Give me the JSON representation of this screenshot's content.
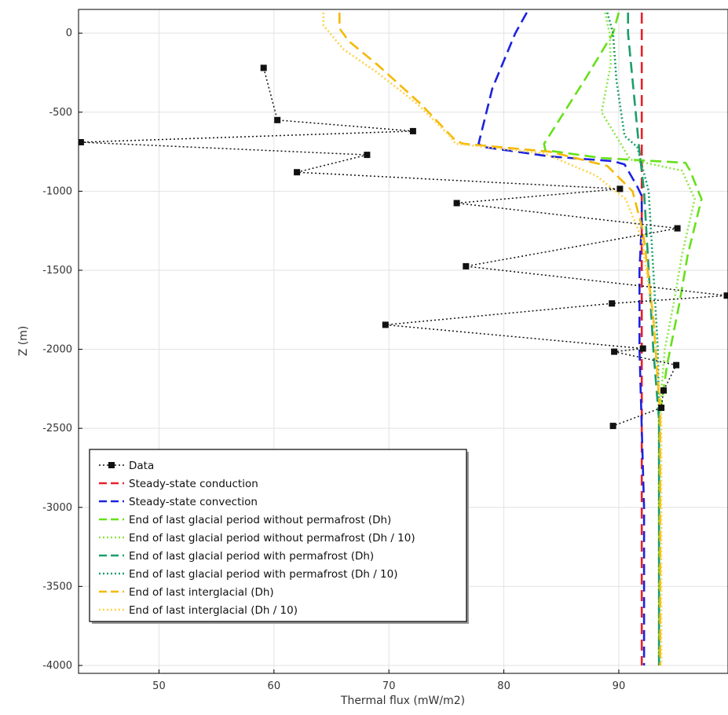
{
  "chart_data": {
    "type": "line",
    "title": "",
    "xlabel": "Thermal flux (mW/m2)",
    "ylabel": "Z (m)",
    "xlim": [
      43,
      99.5
    ],
    "ylim": [
      -4050,
      150
    ],
    "xticks": [
      50,
      60,
      70,
      80,
      90
    ],
    "yticks": [
      0,
      -500,
      -1000,
      -1500,
      -2000,
      -2500,
      -3000,
      -3500,
      -4000
    ],
    "grid": true,
    "legend_position": "bottom-left",
    "series": [
      {
        "name": "Data",
        "color": "#111111",
        "style": "dotted-markers",
        "x": [
          59.1,
          60.3,
          72.1,
          43.2,
          68.1,
          62.0,
          90.1,
          75.9,
          95.1,
          76.7,
          99.4,
          89.4,
          69.7,
          92.1,
          89.6,
          95.0,
          93.9,
          93.7,
          89.5
        ],
        "y": [
          -220,
          -550,
          -620,
          -690,
          -770,
          -880,
          -985,
          -1075,
          -1235,
          -1475,
          -1660,
          -1710,
          -1845,
          -1995,
          -2015,
          -2100,
          -2260,
          -2370,
          -2485
        ]
      },
      {
        "name": "Steady-state conduction",
        "color": "#e8202a",
        "style": "dashed",
        "x": [
          92.0,
          92.0
        ],
        "y": [
          130,
          -4000
        ]
      },
      {
        "name": "Steady-state convection",
        "color": "#1c22e0",
        "style": "dashed",
        "x": [
          82.0,
          81.0,
          79.0,
          77.8,
          78.2,
          84.0,
          89.5,
          90.5,
          91.6,
          92.0,
          92.0,
          91.8,
          91.8,
          92.0,
          92.2,
          92.2
        ],
        "y": [
          130,
          0,
          -350,
          -700,
          -720,
          -780,
          -810,
          -830,
          -970,
          -1030,
          -1200,
          -1500,
          -2000,
          -2500,
          -3000,
          -4000
        ]
      },
      {
        "name": "End of last glacial period without permafrost (Dh)",
        "color": "#66e01a",
        "style": "dashed",
        "x": [
          90.0,
          89.5,
          87.0,
          83.5,
          83.6,
          88.5,
          95.8,
          96.2,
          97.2,
          96.0,
          95.3,
          94.2,
          93.5,
          93.5
        ],
        "y": [
          130,
          0,
          -300,
          -700,
          -740,
          -790,
          -820,
          -870,
          -1050,
          -1400,
          -1700,
          -2100,
          -2450,
          -4000
        ]
      },
      {
        "name": "End of last glacial period without permafrost (Dh / 10)",
        "color": "#8ee64a",
        "style": "dotted",
        "x": [
          88.8,
          89.2,
          89.3,
          88.5,
          91.0,
          95.5,
          96.6,
          95.5,
          94.8,
          94.0,
          93.5,
          93.5
        ],
        "y": [
          130,
          0,
          -200,
          -500,
          -800,
          -870,
          -1050,
          -1400,
          -1700,
          -2000,
          -2450,
          -4000
        ]
      },
      {
        "name": "End of last glacial period with permafrost (Dh)",
        "color": "#1a9e6a",
        "style": "dashed",
        "x": [
          90.8,
          90.8,
          91.8,
          92.2,
          92.6,
          93.0,
          93.5,
          93.5
        ],
        "y": [
          130,
          0,
          -750,
          -1000,
          -1500,
          -2000,
          -2450,
          -4000
        ]
      },
      {
        "name": "End of last glacial period with permafrost (Dh / 10)",
        "color": "#1a9e6a",
        "style": "dotted",
        "x": [
          89.0,
          89.5,
          89.8,
          90.5,
          91.6,
          92.6,
          93.0,
          93.4,
          93.5,
          93.5
        ],
        "y": [
          130,
          0,
          -300,
          -650,
          -720,
          -1000,
          -1500,
          -2000,
          -2450,
          -4000
        ]
      },
      {
        "name": "End of last interglacial (Dh)",
        "color": "#f5b800",
        "style": "dashed",
        "x": [
          65.7,
          65.7,
          66.5,
          69.0,
          72.8,
          75.8,
          76.5,
          84.0,
          89.0,
          91.2,
          92.1,
          93.0,
          93.6,
          93.6
        ],
        "y": [
          130,
          30,
          -50,
          -200,
          -450,
          -680,
          -700,
          -750,
          -840,
          -1000,
          -1250,
          -1800,
          -2400,
          -4000
        ]
      },
      {
        "name": "End of last interglacial (Dh / 10)",
        "color": "#ffd24a",
        "style": "dotted",
        "x": [
          64.3,
          64.3,
          66.0,
          69.0,
          72.5,
          75.3,
          75.8,
          83.5,
          88.0,
          90.6,
          92.0,
          93.0,
          93.7,
          93.7
        ],
        "y": [
          130,
          50,
          -100,
          -250,
          -450,
          -650,
          -700,
          -760,
          -900,
          -1050,
          -1300,
          -1800,
          -2400,
          -4000
        ]
      }
    ]
  }
}
